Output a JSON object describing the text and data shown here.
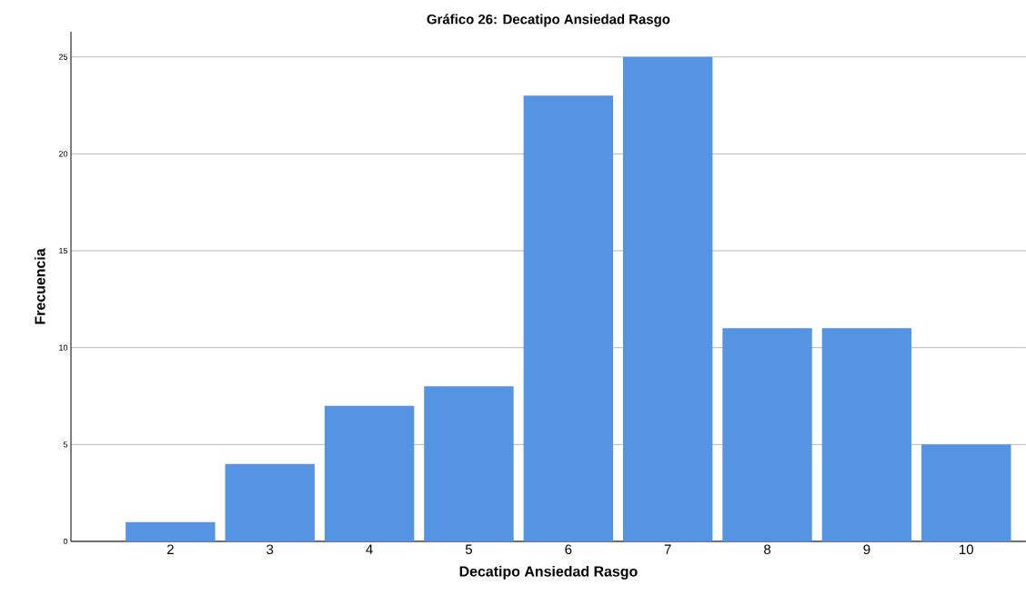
{
  "chart_data": {
    "type": "bar",
    "title": "Gráfico 26: Decatipo Ansiedad Rasgo",
    "xlabel": "Decatipo Ansiedad Rasgo",
    "ylabel": "Frecuencia",
    "categories": [
      "2",
      "3",
      "4",
      "5",
      "6",
      "7",
      "8",
      "9",
      "10"
    ],
    "values": [
      1,
      4,
      7,
      8,
      23,
      25,
      11,
      11,
      5
    ],
    "color": "#5594e3",
    "ylim": [
      0,
      26.3
    ],
    "yticks": [
      0,
      5,
      10,
      15,
      20,
      25
    ],
    "grid": "y"
  }
}
